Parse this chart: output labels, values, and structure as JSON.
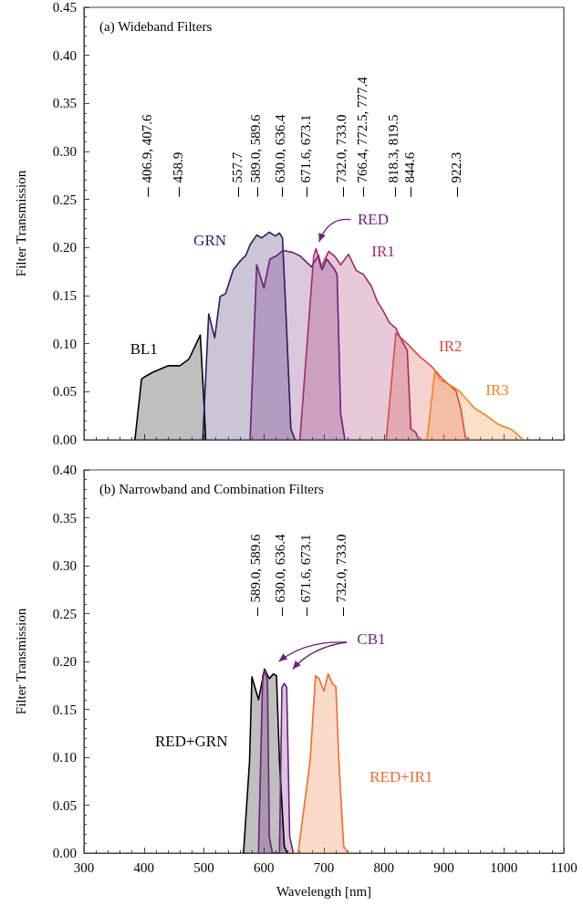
{
  "chart_data": [
    {
      "type": "area",
      "title": "(a) Wideband Filters",
      "ylabel": "Filter Transmission",
      "xlim": [
        300,
        1100
      ],
      "xticks": [
        300,
        400,
        500,
        600,
        700,
        800,
        900,
        1000,
        1100
      ],
      "ylim": [
        0,
        0.45
      ],
      "yticks": [
        {
          "value": 0,
          "label": "0.00"
        },
        {
          "value": 0.05,
          "label": "0.05"
        },
        {
          "value": 0.1,
          "label": "0.10"
        },
        {
          "value": 0.15,
          "label": "0.15"
        },
        {
          "value": 0.2,
          "label": "0.20"
        },
        {
          "value": 0.25,
          "label": "0.25"
        },
        {
          "value": 0.3,
          "label": "0.30"
        },
        {
          "value": 0.35,
          "label": "0.35"
        },
        {
          "value": 0.4,
          "label": "0.40"
        },
        {
          "value": 0.45,
          "label": "0.45"
        }
      ],
      "tick_labels": "y",
      "grid": false,
      "legend": false,
      "series": [
        {
          "name": "BL1",
          "color": "#000000",
          "x": [
            385,
            396,
            400,
            414,
            440,
            460,
            475,
            485,
            494,
            500,
            503
          ],
          "values": [
            0,
            0.063,
            0.065,
            0.07,
            0.077,
            0.077,
            0.084,
            0.097,
            0.109,
            0.04,
            0
          ]
        },
        {
          "name": "GRN",
          "color": "#2e1a5c",
          "x": [
            498,
            508,
            518,
            527,
            536,
            549,
            559,
            570,
            577,
            588,
            596,
            609,
            619,
            626,
            631,
            637,
            645,
            652
          ],
          "values": [
            0,
            0.131,
            0.106,
            0.149,
            0.152,
            0.177,
            0.185,
            0.192,
            0.203,
            0.213,
            0.21,
            0.216,
            0.212,
            0.215,
            0.21,
            0.128,
            0.011,
            0
          ]
        },
        {
          "name": "RED",
          "color": "#6b1f7a",
          "x": [
            577,
            588,
            600,
            610,
            620,
            632,
            648,
            661,
            679,
            691,
            697,
            705,
            718,
            722,
            728,
            735
          ],
          "values": [
            0,
            0.182,
            0.158,
            0.188,
            0.191,
            0.197,
            0.195,
            0.191,
            0.18,
            0.192,
            0.177,
            0.188,
            0.177,
            0.172,
            0.027,
            0
          ]
        },
        {
          "name": "IR1",
          "color": "#9e2a6b",
          "x": [
            660,
            683,
            687,
            695,
            708,
            718,
            728,
            741,
            754,
            766,
            779,
            789,
            799,
            809,
            820,
            830,
            839,
            845,
            853,
            858
          ],
          "values": [
            0,
            0.191,
            0.199,
            0.179,
            0.196,
            0.191,
            0.182,
            0.193,
            0.176,
            0.172,
            0.16,
            0.144,
            0.134,
            0.122,
            0.116,
            0.103,
            0.093,
            0.011,
            0.008,
            0
          ]
        },
        {
          "name": "IR2",
          "color": "#d84a45",
          "x": [
            804,
            820,
            839,
            859,
            880,
            900,
            920,
            928,
            936,
            941
          ],
          "values": [
            0,
            0.111,
            0.1,
            0.087,
            0.076,
            0.062,
            0.051,
            0.033,
            0.002,
            0
          ]
        },
        {
          "name": "IR3",
          "color": "#f5821f",
          "x": [
            872,
            885,
            895,
            910,
            925,
            951,
            971,
            991,
            1012,
            1022,
            1032
          ],
          "values": [
            0,
            0.071,
            0.062,
            0.057,
            0.051,
            0.033,
            0.025,
            0.016,
            0.011,
            0.006,
            0
          ]
        }
      ],
      "ref_lines": [
        {
          "axis": "x",
          "value": 406.9,
          "label": "406.9, 407.6"
        },
        {
          "axis": "x",
          "value": 458.9,
          "label": "458.9"
        },
        {
          "axis": "x",
          "value": 557.7,
          "label": "557.7"
        },
        {
          "axis": "x",
          "value": 589.0,
          "label": "589.0, 589.6"
        },
        {
          "axis": "x",
          "value": 630.0,
          "label": "630.0, 636.4"
        },
        {
          "axis": "x",
          "value": 671.6,
          "label": "671.6, 673.1"
        },
        {
          "axis": "x",
          "value": 732.0,
          "label": "732.0, 733.0"
        },
        {
          "axis": "x",
          "value": 766.4,
          "label": "766.4, 772.5, 777.4"
        },
        {
          "axis": "x",
          "value": 818.3,
          "label": "818.3, 819.5"
        },
        {
          "axis": "x",
          "value": 844.6,
          "label": "844.6"
        },
        {
          "axis": "x",
          "value": 922.3,
          "label": "922.3"
        }
      ]
    },
    {
      "type": "area",
      "title": "(b) Narrowband and Combination Filters",
      "xlabel": "Wavelength [nm]",
      "ylabel": "Filter Transmission",
      "xlim": [
        300,
        1100
      ],
      "xticks": [
        300,
        400,
        500,
        600,
        700,
        800,
        900,
        1000,
        1100
      ],
      "ylim": [
        0,
        0.4
      ],
      "yticks": [
        {
          "value": 0,
          "label": "0.00"
        },
        {
          "value": 0.05,
          "label": "0.05"
        },
        {
          "value": 0.1,
          "label": "0.10"
        },
        {
          "value": 0.15,
          "label": "0.15"
        },
        {
          "value": 0.2,
          "label": "0.20"
        },
        {
          "value": 0.25,
          "label": "0.25"
        },
        {
          "value": 0.3,
          "label": "0.30"
        },
        {
          "value": 0.35,
          "label": "0.35"
        },
        {
          "value": 0.4,
          "label": "0.40"
        }
      ],
      "grid": false,
      "legend": false,
      "series": [
        {
          "name": "RED+GRN",
          "color": "#000000",
          "x": [
            566,
            576,
            580,
            591,
            601,
            609,
            616,
            621,
            626,
            634,
            639
          ],
          "values": [
            0,
            0.095,
            0.184,
            0.16,
            0.192,
            0.182,
            0.187,
            0.185,
            0.096,
            0.007,
            0
          ]
        },
        {
          "name": "CB1",
          "color": "#6b1f7a",
          "x": [
            591,
            598,
            602,
            606,
            609,
            614,
            626,
            630,
            634,
            638,
            643,
            649
          ],
          "values": [
            0,
            0.185,
            0.191,
            0.179,
            0.017,
            0,
            0,
            0.173,
            0.177,
            0.173,
            0.017,
            0
          ]
        },
        {
          "name": "RED+IR1",
          "color": "#f26b2a",
          "x": [
            657,
            677,
            686,
            692,
            700,
            707,
            715,
            720,
            725,
            733,
            740
          ],
          "values": [
            0,
            0.096,
            0.185,
            0.182,
            0.169,
            0.187,
            0.176,
            0.174,
            0.096,
            0.007,
            0
          ]
        }
      ],
      "ref_lines": [
        {
          "axis": "x",
          "value": 589.0,
          "label": "589.0, 589.6"
        },
        {
          "axis": "x",
          "value": 630.0,
          "label": "630.0, 636.4"
        },
        {
          "axis": "x",
          "value": 671.6,
          "label": "671.6, 673.1"
        },
        {
          "axis": "x",
          "value": 732.0,
          "label": "732.0, 733.0"
        }
      ]
    }
  ]
}
